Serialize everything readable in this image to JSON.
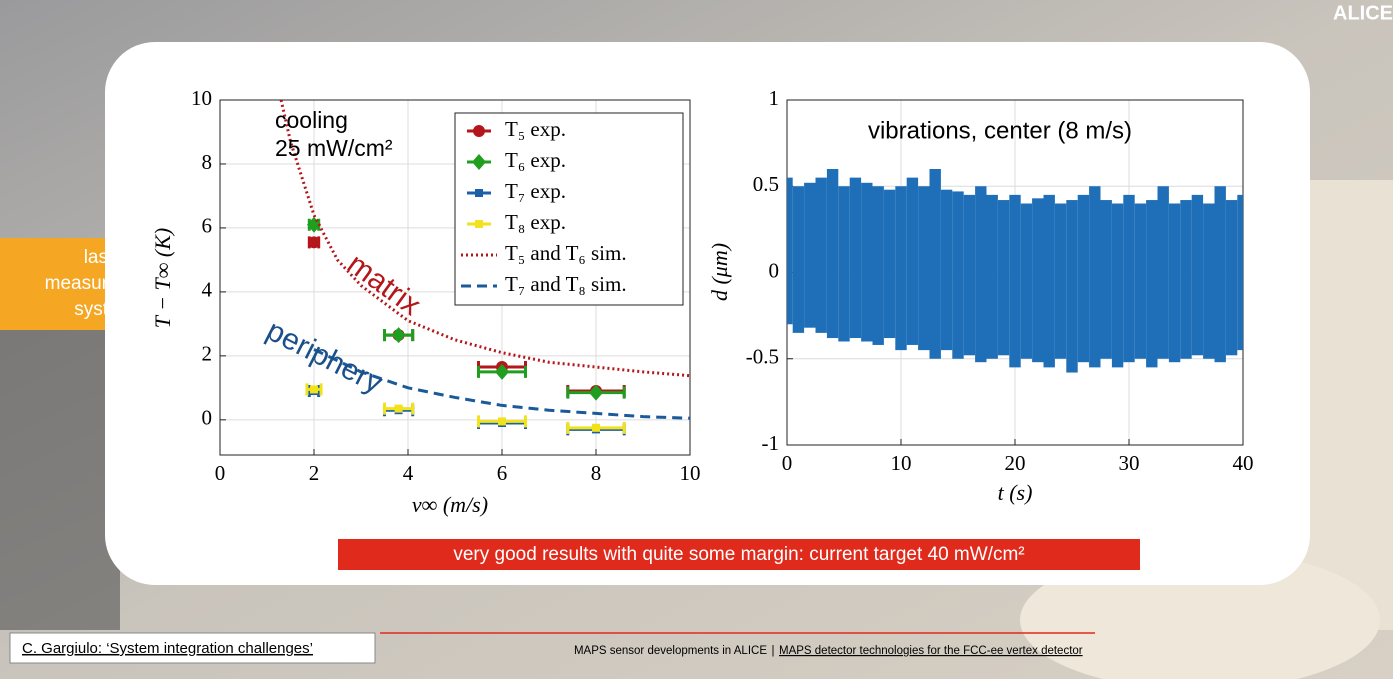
{
  "slide": {
    "corner_logo": "ALICE",
    "side_note": [
      "las",
      "measur",
      "syst"
    ],
    "banner": "very good results with quite some margin: current target 40 mW/cm²",
    "footer": {
      "reference": "C. Gargiulo: ‘System integration challenges’",
      "center": "MAPS sensor developments in ALICE",
      "separator": "|",
      "link": "MAPS detector technologies for the FCC-ee vertex detector"
    }
  },
  "chart_data": [
    {
      "type": "scatter",
      "xlabel": "v∞ (m/s)",
      "ylabel": "T − T∞ (K)",
      "annotations": [
        "cooling",
        "25 mW/cm²",
        "matrix",
        "periphery"
      ],
      "xlim": [
        0,
        10
      ],
      "ylim": [
        -1.1,
        10
      ],
      "xticks": [
        0,
        2,
        4,
        6,
        8,
        10
      ],
      "yticks": [
        0,
        2,
        4,
        6,
        8,
        10
      ],
      "grid": true,
      "legend": "upper right",
      "series": [
        {
          "name": "T₅ exp.",
          "kind": "errorbar",
          "marker": "circle",
          "color": "#b3161b",
          "x": [
            2,
            3.8,
            6,
            8
          ],
          "values": [
            5.55,
            2.65,
            1.65,
            0.9
          ],
          "xerr": [
            0.1,
            0.3,
            0.5,
            0.6
          ]
        },
        {
          "name": "T₆ exp.",
          "kind": "errorbar",
          "marker": "diamond",
          "color": "#1f9e1f",
          "x": [
            2,
            3.8,
            6,
            8
          ],
          "values": [
            6.1,
            2.65,
            1.5,
            0.85
          ],
          "xerr": [
            0.1,
            0.3,
            0.5,
            0.6
          ]
        },
        {
          "name": "T₇ exp.",
          "kind": "errorbar",
          "marker": "square",
          "color": "#1a5fa8",
          "x": [
            2,
            3.8,
            6,
            8
          ],
          "values": [
            0.9,
            0.3,
            -0.1,
            -0.3
          ],
          "xerr": [
            0.1,
            0.3,
            0.5,
            0.6
          ]
        },
        {
          "name": "T₈ exp.",
          "kind": "errorbar",
          "marker": "square",
          "color": "#f2e21c",
          "x": [
            2,
            3.8,
            6,
            8
          ],
          "values": [
            0.95,
            0.35,
            -0.05,
            -0.25
          ],
          "xerr": [
            0.15,
            0.3,
            0.5,
            0.6
          ]
        },
        {
          "name": "T₅ and T₆ sim.",
          "kind": "line",
          "dash": "dotted",
          "color": "#b3161b",
          "x": [
            1.3,
            1.5,
            2,
            2.5,
            3,
            4,
            5,
            6,
            7,
            8,
            9,
            10
          ],
          "values": [
            10,
            8.7,
            6.4,
            5.0,
            4.2,
            3.1,
            2.5,
            2.1,
            1.8,
            1.65,
            1.5,
            1.38
          ]
        },
        {
          "name": "T₇ and T₈ sim.",
          "kind": "line",
          "dash": "dashed",
          "color": "#1a5a9a",
          "x": [
            2,
            3,
            4,
            5,
            6,
            7,
            8,
            9,
            10
          ],
          "values": [
            2.2,
            1.5,
            1.0,
            0.7,
            0.45,
            0.3,
            0.2,
            0.1,
            0.05
          ]
        }
      ]
    },
    {
      "type": "band",
      "title": "vibrations, center (8 m/s)",
      "xlabel": "t (s)",
      "ylabel": "d (μm)",
      "xlim": [
        0,
        40
      ],
      "ylim": [
        -1,
        1
      ],
      "xticks": [
        0,
        10,
        20,
        30,
        40
      ],
      "yticks": [
        -1,
        -0.5,
        0,
        0.5,
        1
      ],
      "grid": true,
      "color": "#1f6fb8",
      "x": [
        0,
        1,
        2,
        3,
        4,
        5,
        6,
        7,
        8,
        9,
        10,
        11,
        12,
        13,
        14,
        15,
        16,
        17,
        18,
        19,
        20,
        21,
        22,
        23,
        24,
        25,
        26,
        27,
        28,
        29,
        30,
        31,
        32,
        33,
        34,
        35,
        36,
        37,
        38,
        39,
        40
      ],
      "high": [
        0.55,
        0.5,
        0.52,
        0.55,
        0.6,
        0.5,
        0.55,
        0.52,
        0.5,
        0.48,
        0.5,
        0.55,
        0.5,
        0.6,
        0.48,
        0.47,
        0.45,
        0.5,
        0.45,
        0.42,
        0.45,
        0.4,
        0.43,
        0.45,
        0.4,
        0.42,
        0.45,
        0.5,
        0.42,
        0.4,
        0.45,
        0.4,
        0.42,
        0.5,
        0.4,
        0.42,
        0.45,
        0.4,
        0.5,
        0.42,
        0.45
      ],
      "low": [
        -0.3,
        -0.35,
        -0.32,
        -0.35,
        -0.38,
        -0.4,
        -0.38,
        -0.4,
        -0.42,
        -0.38,
        -0.45,
        -0.42,
        -0.45,
        -0.5,
        -0.45,
        -0.5,
        -0.48,
        -0.52,
        -0.5,
        -0.48,
        -0.55,
        -0.5,
        -0.52,
        -0.55,
        -0.5,
        -0.58,
        -0.52,
        -0.55,
        -0.5,
        -0.55,
        -0.52,
        -0.5,
        -0.55,
        -0.5,
        -0.52,
        -0.5,
        -0.48,
        -0.5,
        -0.52,
        -0.48,
        -0.45
      ]
    }
  ]
}
